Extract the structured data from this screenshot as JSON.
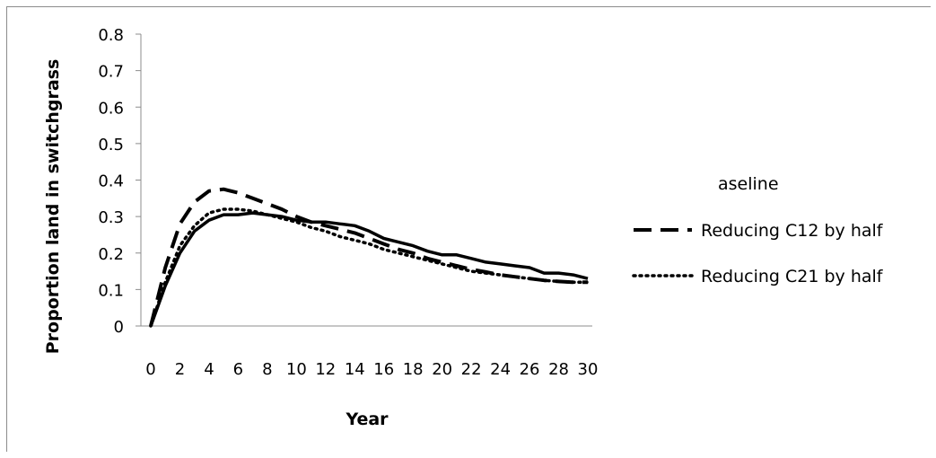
{
  "chart_data": {
    "type": "line",
    "title": "",
    "xlabel": "Year",
    "ylabel": "Proportion land in switchgrass",
    "xlim": [
      0,
      30
    ],
    "ylim": [
      0,
      0.8
    ],
    "x_ticks": [
      "0",
      "2",
      "4",
      "6",
      "8",
      "10",
      "12",
      "14",
      "16",
      "18",
      "20",
      "22",
      "24",
      "26",
      "28",
      "30"
    ],
    "y_ticks": [
      "0",
      "0.1",
      "0.2",
      "0.3",
      "0.4",
      "0.5",
      "0.6",
      "0.7",
      "0.8"
    ],
    "grid": false,
    "legend_position": "right",
    "legend_first_label": "aseline",
    "x": [
      0,
      1,
      2,
      3,
      4,
      5,
      6,
      7,
      8,
      9,
      10,
      11,
      12,
      13,
      14,
      15,
      16,
      17,
      18,
      19,
      20,
      21,
      22,
      23,
      24,
      25,
      26,
      27,
      28,
      29,
      30
    ],
    "series": [
      {
        "name": "aseline",
        "style": "solid",
        "values": [
          0,
          0.11,
          0.2,
          0.26,
          0.29,
          0.305,
          0.305,
          0.31,
          0.305,
          0.3,
          0.29,
          0.285,
          0.285,
          0.28,
          0.275,
          0.26,
          0.24,
          0.23,
          0.22,
          0.205,
          0.195,
          0.195,
          0.185,
          0.175,
          0.17,
          0.165,
          0.16,
          0.145,
          0.145,
          0.14,
          0.13
        ]
      },
      {
        "name": "Reducing C12 by half",
        "style": "dashed",
        "values": [
          0,
          0.16,
          0.28,
          0.34,
          0.37,
          0.375,
          0.365,
          0.35,
          0.335,
          0.32,
          0.3,
          0.285,
          0.275,
          0.265,
          0.255,
          0.24,
          0.225,
          0.21,
          0.2,
          0.185,
          0.175,
          0.165,
          0.155,
          0.148,
          0.14,
          0.135,
          0.13,
          0.125,
          0.122,
          0.12,
          0.12
        ]
      },
      {
        "name": "Reducing C21 by half",
        "style": "dotted",
        "values": [
          0,
          0.12,
          0.22,
          0.275,
          0.31,
          0.32,
          0.32,
          0.315,
          0.305,
          0.295,
          0.285,
          0.27,
          0.26,
          0.245,
          0.235,
          0.225,
          0.21,
          0.2,
          0.19,
          0.18,
          0.17,
          0.16,
          0.15,
          0.145,
          0.14,
          0.135,
          0.13,
          0.125,
          0.122,
          0.12,
          0.12
        ]
      }
    ]
  }
}
